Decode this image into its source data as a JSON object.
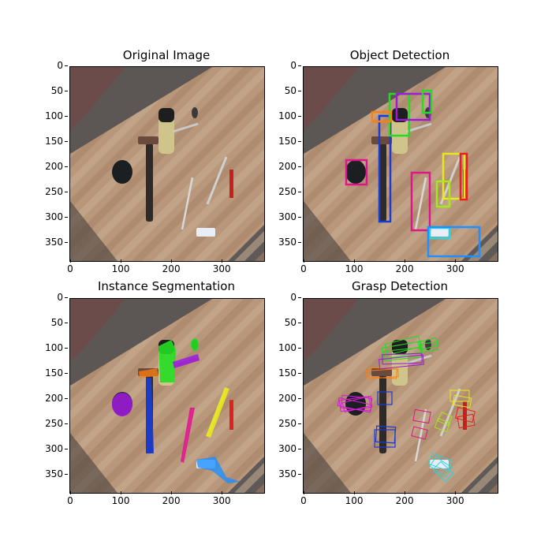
{
  "figure": {
    "panels": [
      {
        "title": "Original Image"
      },
      {
        "title": "Object Detection"
      },
      {
        "title": "Instance Segmentation"
      },
      {
        "title": "Grasp Detection"
      }
    ],
    "y_ticks": [
      "0",
      "50",
      "100",
      "150",
      "200",
      "250",
      "300",
      "350"
    ],
    "x_ticks": [
      "0",
      "100",
      "200",
      "300"
    ]
  },
  "colors": {
    "blue": "#1a3cd6",
    "green": "#22dd22",
    "purple": "#9b1bd6",
    "magenta": "#e0148c",
    "orange": "#ff7f0e",
    "yellow": "#e8e81c",
    "lime": "#a8e61e",
    "red": "#e61e1e",
    "cyan": "#22d6e6",
    "skyblue": "#1e90ff",
    "violet": "#d61ed6"
  }
}
